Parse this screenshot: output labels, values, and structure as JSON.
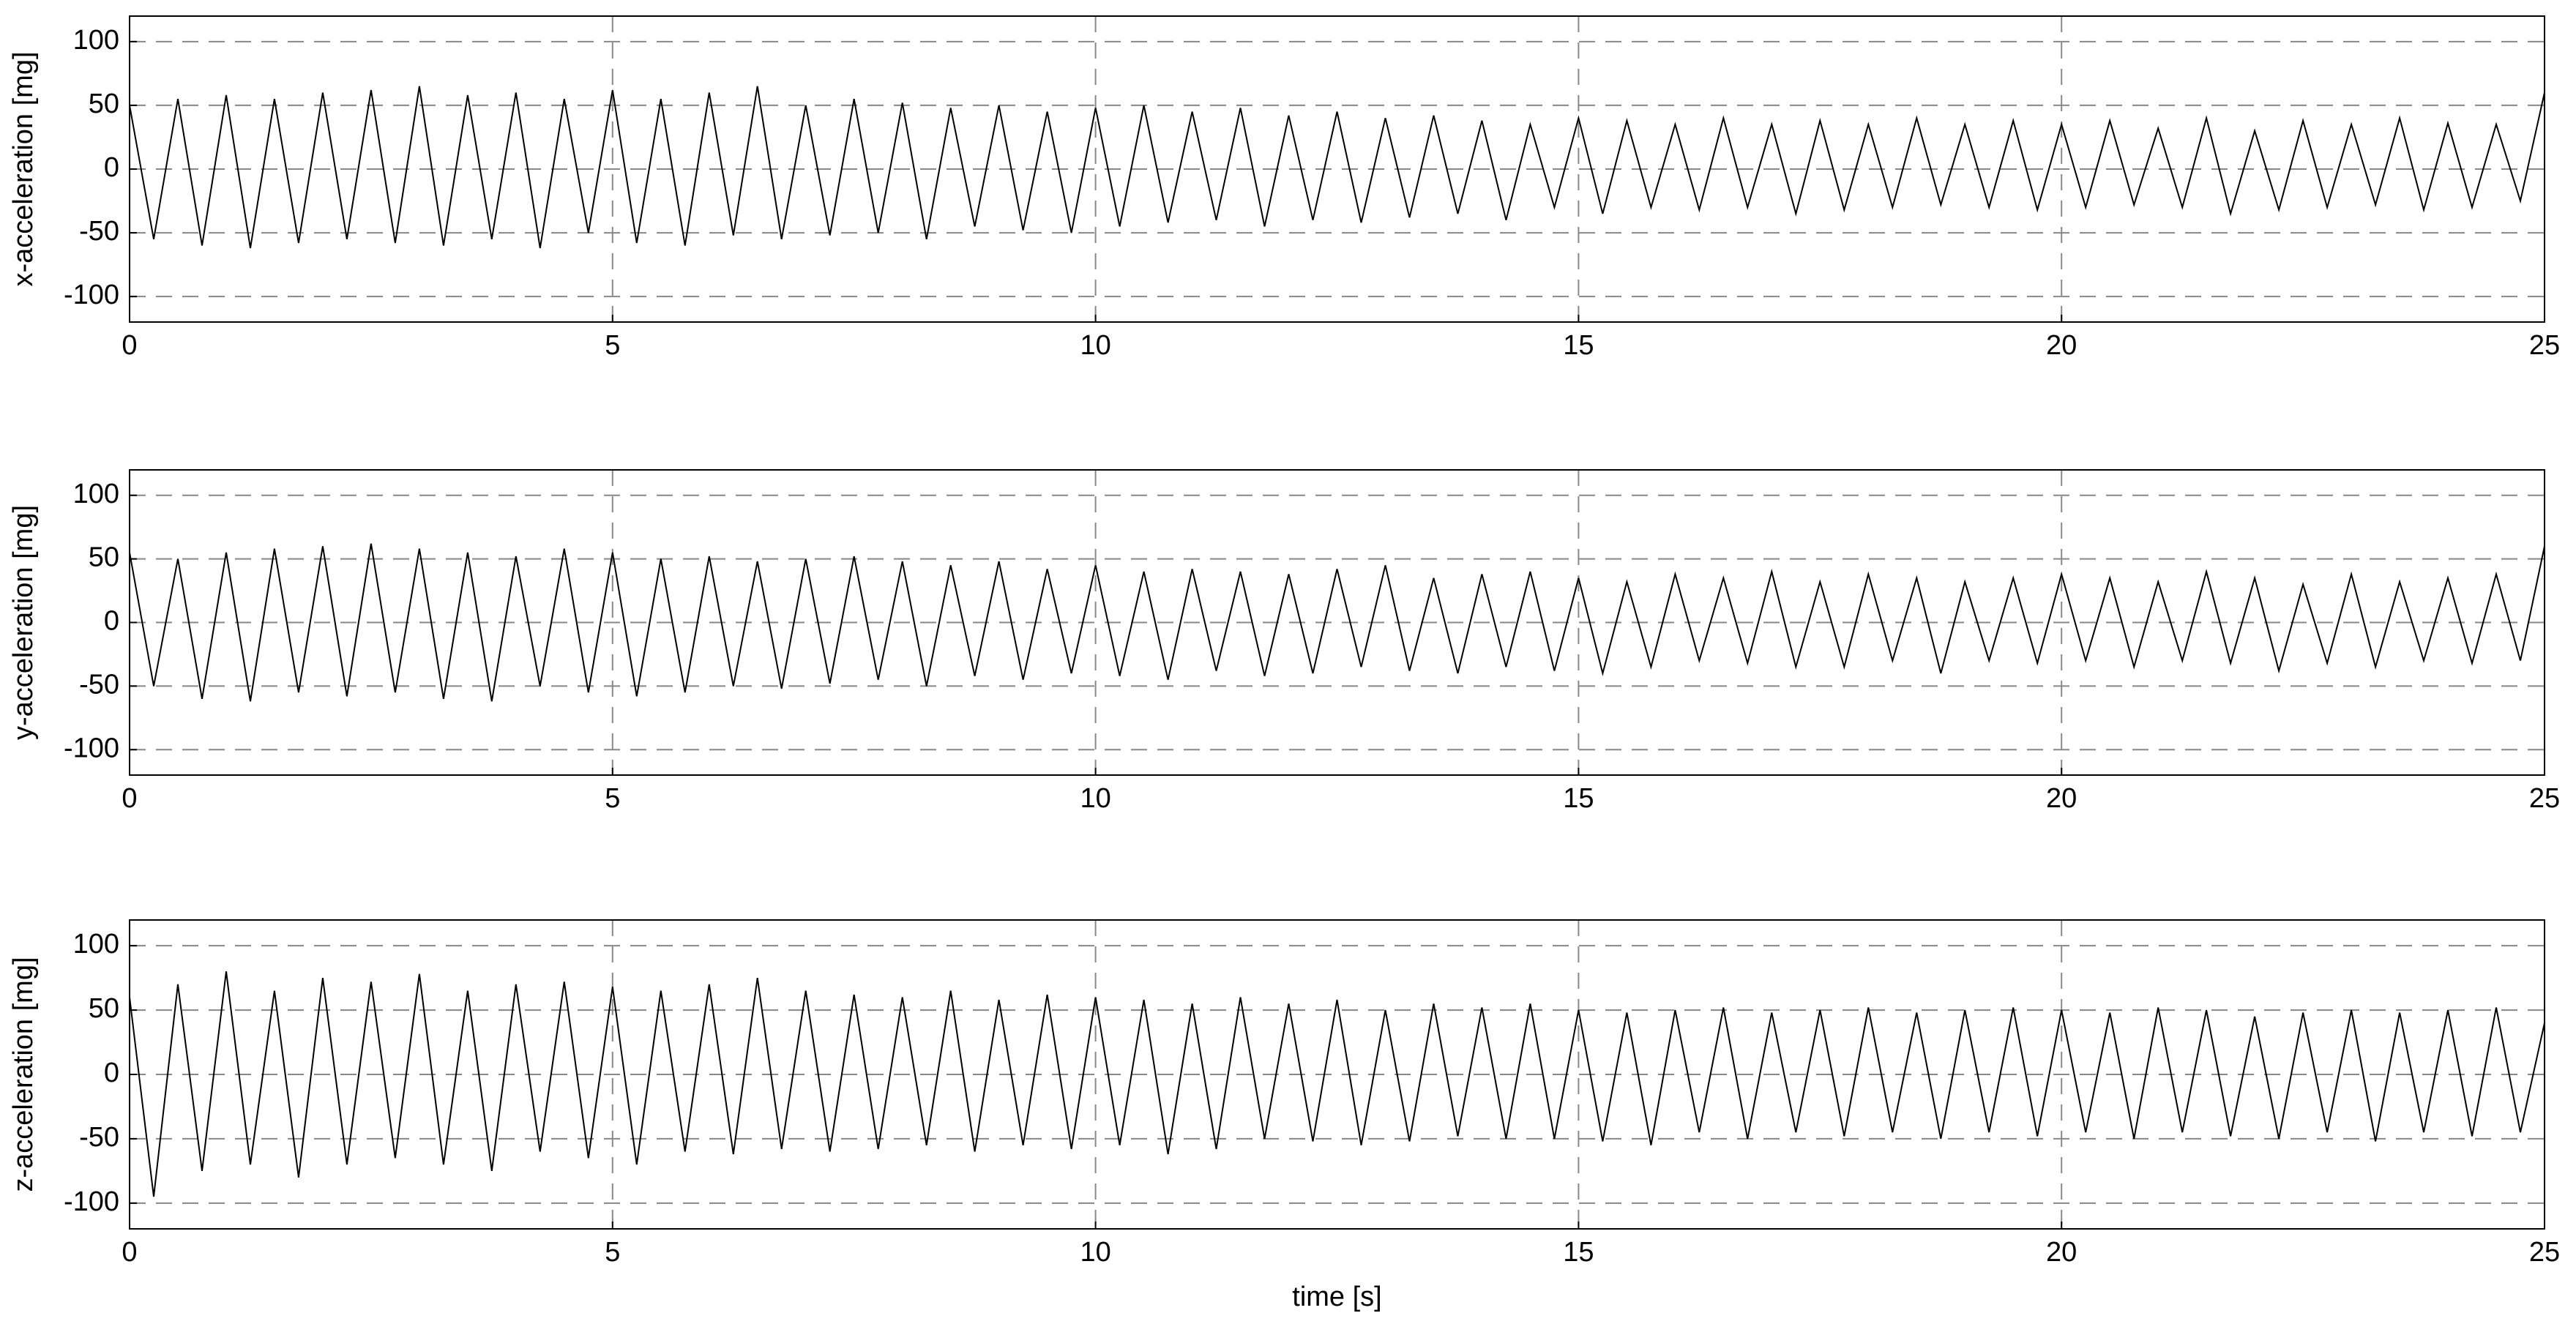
{
  "chart_data": [
    {
      "type": "line",
      "ylabel": "x-acceleration [mg]",
      "color": "#000000",
      "grid": true,
      "xlim": [
        0,
        25
      ],
      "xticks": [
        0,
        5,
        10,
        15,
        20,
        25
      ],
      "ylim": [
        -120,
        120
      ],
      "yticks": [
        -100,
        -50,
        0,
        50,
        100
      ],
      "x": [
        0,
        0.25,
        0.5,
        0.75,
        1,
        1.25,
        1.5,
        1.75,
        2,
        2.25,
        2.5,
        2.75,
        3,
        3.25,
        3.5,
        3.75,
        4,
        4.25,
        4.5,
        4.75,
        5,
        5.25,
        5.5,
        5.75,
        6,
        6.25,
        6.5,
        6.75,
        7,
        7.25,
        7.5,
        7.75,
        8,
        8.25,
        8.5,
        8.75,
        9,
        9.25,
        9.5,
        9.75,
        10,
        10.25,
        10.5,
        10.75,
        11,
        11.25,
        11.5,
        11.75,
        12,
        12.25,
        12.5,
        12.75,
        13,
        13.25,
        13.5,
        13.75,
        14,
        14.25,
        14.5,
        14.75,
        15,
        15.25,
        15.5,
        15.75,
        16,
        16.25,
        16.5,
        16.75,
        17,
        17.25,
        17.5,
        17.75,
        18,
        18.25,
        18.5,
        18.75,
        19,
        19.25,
        19.5,
        19.75,
        20,
        20.25,
        20.5,
        20.75,
        21,
        21.25,
        21.5,
        21.75,
        22,
        22.25,
        22.5,
        22.75,
        23,
        23.25,
        23.5,
        23.75,
        24,
        24.25,
        24.5,
        24.75,
        25
      ],
      "values": [
        50,
        -55,
        55,
        -60,
        58,
        -62,
        55,
        -58,
        60,
        -55,
        62,
        -58,
        65,
        -60,
        58,
        -55,
        60,
        -62,
        55,
        -50,
        62,
        -58,
        55,
        -60,
        60,
        -52,
        65,
        -55,
        50,
        -52,
        55,
        -50,
        52,
        -55,
        48,
        -45,
        50,
        -48,
        45,
        -50,
        48,
        -45,
        50,
        -42,
        45,
        -40,
        48,
        -45,
        42,
        -40,
        45,
        -42,
        40,
        -38,
        42,
        -35,
        38,
        -40,
        35,
        -30,
        40,
        -35,
        38,
        -30,
        35,
        -32,
        40,
        -30,
        35,
        -35,
        38,
        -32,
        35,
        -30,
        40,
        -28,
        35,
        -30,
        38,
        -32,
        35,
        -30,
        38,
        -28,
        32,
        -30,
        40,
        -35,
        30,
        -32,
        38,
        -30,
        35,
        -28,
        40,
        -32,
        36,
        -30,
        35,
        -25,
        60
      ]
    },
    {
      "type": "line",
      "ylabel": "y-acceleration [mg]",
      "color": "#000000",
      "grid": true,
      "xlim": [
        0,
        25
      ],
      "xticks": [
        0,
        5,
        10,
        15,
        20,
        25
      ],
      "ylim": [
        -120,
        120
      ],
      "yticks": [
        -100,
        -50,
        0,
        50,
        100
      ],
      "x": [
        0,
        0.25,
        0.5,
        0.75,
        1,
        1.25,
        1.5,
        1.75,
        2,
        2.25,
        2.5,
        2.75,
        3,
        3.25,
        3.5,
        3.75,
        4,
        4.25,
        4.5,
        4.75,
        5,
        5.25,
        5.5,
        5.75,
        6,
        6.25,
        6.5,
        6.75,
        7,
        7.25,
        7.5,
        7.75,
        8,
        8.25,
        8.5,
        8.75,
        9,
        9.25,
        9.5,
        9.75,
        10,
        10.25,
        10.5,
        10.75,
        11,
        11.25,
        11.5,
        11.75,
        12,
        12.25,
        12.5,
        12.75,
        13,
        13.25,
        13.5,
        13.75,
        14,
        14.25,
        14.5,
        14.75,
        15,
        15.25,
        15.5,
        15.75,
        16,
        16.25,
        16.5,
        16.75,
        17,
        17.25,
        17.5,
        17.75,
        18,
        18.25,
        18.5,
        18.75,
        19,
        19.25,
        19.5,
        19.75,
        20,
        20.25,
        20.5,
        20.75,
        21,
        21.25,
        21.5,
        21.75,
        22,
        22.25,
        22.5,
        22.75,
        23,
        23.25,
        23.5,
        23.75,
        24,
        24.25,
        24.5,
        24.75,
        25
      ],
      "values": [
        55,
        -50,
        50,
        -60,
        55,
        -62,
        58,
        -55,
        60,
        -58,
        62,
        -55,
        58,
        -60,
        55,
        -62,
        52,
        -50,
        58,
        -55,
        55,
        -58,
        50,
        -55,
        52,
        -50,
        48,
        -52,
        50,
        -48,
        52,
        -45,
        48,
        -50,
        45,
        -42,
        48,
        -45,
        42,
        -40,
        45,
        -42,
        40,
        -45,
        42,
        -38,
        40,
        -42,
        38,
        -40,
        42,
        -35,
        45,
        -38,
        35,
        -40,
        38,
        -35,
        40,
        -38,
        35,
        -40,
        32,
        -35,
        38,
        -30,
        35,
        -32,
        40,
        -35,
        32,
        -35,
        38,
        -30,
        35,
        -40,
        32,
        -30,
        35,
        -32,
        38,
        -30,
        35,
        -35,
        32,
        -30,
        40,
        -32,
        35,
        -38,
        30,
        -32,
        38,
        -35,
        32,
        -30,
        35,
        -32,
        38,
        -30,
        60
      ]
    },
    {
      "type": "line",
      "ylabel": "z-acceleration [mg]",
      "xlabel": "time [s]",
      "color": "#000000",
      "grid": true,
      "xlim": [
        0,
        25
      ],
      "xticks": [
        0,
        5,
        10,
        15,
        20,
        25
      ],
      "ylim": [
        -120,
        120
      ],
      "yticks": [
        -100,
        -50,
        0,
        50,
        100
      ],
      "x": [
        0,
        0.25,
        0.5,
        0.75,
        1,
        1.25,
        1.5,
        1.75,
        2,
        2.25,
        2.5,
        2.75,
        3,
        3.25,
        3.5,
        3.75,
        4,
        4.25,
        4.5,
        4.75,
        5,
        5.25,
        5.5,
        5.75,
        6,
        6.25,
        6.5,
        6.75,
        7,
        7.25,
        7.5,
        7.75,
        8,
        8.25,
        8.5,
        8.75,
        9,
        9.25,
        9.5,
        9.75,
        10,
        10.25,
        10.5,
        10.75,
        11,
        11.25,
        11.5,
        11.75,
        12,
        12.25,
        12.5,
        12.75,
        13,
        13.25,
        13.5,
        13.75,
        14,
        14.25,
        14.5,
        14.75,
        15,
        15.25,
        15.5,
        15.75,
        16,
        16.25,
        16.5,
        16.75,
        17,
        17.25,
        17.5,
        17.75,
        18,
        18.25,
        18.5,
        18.75,
        19,
        19.25,
        19.5,
        19.75,
        20,
        20.25,
        20.5,
        20.75,
        21,
        21.25,
        21.5,
        21.75,
        22,
        22.25,
        22.5,
        22.75,
        23,
        23.25,
        23.5,
        23.75,
        24,
        24.25,
        24.5,
        24.75,
        25
      ],
      "values": [
        60,
        -95,
        70,
        -75,
        80,
        -70,
        65,
        -80,
        75,
        -70,
        72,
        -65,
        78,
        -70,
        65,
        -75,
        70,
        -60,
        72,
        -65,
        68,
        -70,
        65,
        -60,
        70,
        -62,
        75,
        -58,
        65,
        -60,
        62,
        -58,
        60,
        -55,
        65,
        -60,
        58,
        -55,
        62,
        -58,
        60,
        -55,
        58,
        -62,
        55,
        -58,
        60,
        -50,
        55,
        -52,
        58,
        -55,
        50,
        -52,
        55,
        -48,
        52,
        -50,
        55,
        -50,
        50,
        -52,
        48,
        -55,
        50,
        -45,
        52,
        -50,
        48,
        -45,
        50,
        -48,
        52,
        -45,
        48,
        -50,
        50,
        -45,
        52,
        -48,
        50,
        -45,
        48,
        -50,
        52,
        -45,
        50,
        -48,
        45,
        -50,
        48,
        -45,
        50,
        -52,
        48,
        -45,
        50,
        -48,
        52,
        -45,
        40
      ]
    }
  ]
}
